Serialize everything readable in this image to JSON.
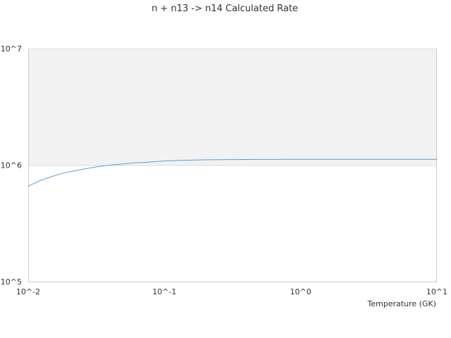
{
  "chart_data": {
    "type": "line",
    "title": "n + n13 -> n14 Calculated Rate",
    "xlabel": "Temperature (GK)",
    "ylabel": "",
    "x_scale": "log",
    "y_scale": "log",
    "xlim": [
      0.01,
      10
    ],
    "ylim": [
      100000,
      10000000
    ],
    "x_ticks": [
      {
        "value": 0.01,
        "label": "10^-2"
      },
      {
        "value": 0.1,
        "label": "10^-1"
      },
      {
        "value": 1,
        "label": "10^0"
      },
      {
        "value": 10,
        "label": "10^1"
      }
    ],
    "y_ticks": [
      {
        "value": 100000,
        "label": "10^5"
      },
      {
        "value": 1000000,
        "label": "10^6"
      },
      {
        "value": 10000000,
        "label": "10^7"
      }
    ],
    "grid": true,
    "shaded_band": [
      1000000,
      10000000
    ],
    "colors": {
      "line": "#5b9bd5",
      "band": "#f2f2f2",
      "grid": "#dddddd",
      "axis": "#cccccc"
    },
    "series": [
      {
        "x": [
          0.01,
          0.012,
          0.015,
          0.018,
          0.022,
          0.027,
          0.032,
          0.04,
          0.05,
          0.06,
          0.07,
          0.08,
          0.09,
          0.1,
          0.11,
          0.13,
          0.15,
          0.18,
          0.2,
          0.25,
          0.3,
          0.4,
          0.5,
          0.6,
          0.7,
          0.8,
          0.9,
          1,
          1.5,
          2,
          3,
          4,
          5,
          7,
          10
        ],
        "y": [
          660000,
          730000,
          800000,
          855000,
          895000,
          935000,
          970000,
          1000000,
          1025000,
          1045000,
          1055000,
          1065000,
          1075000,
          1085000,
          1090000,
          1097000,
          1103000,
          1108000,
          1111000,
          1114000,
          1116000,
          1118000,
          1119000,
          1120000,
          1120000,
          1121000,
          1121000,
          1121000,
          1121000,
          1121000,
          1121000,
          1121000,
          1121000,
          1121000,
          1121000
        ]
      }
    ]
  }
}
